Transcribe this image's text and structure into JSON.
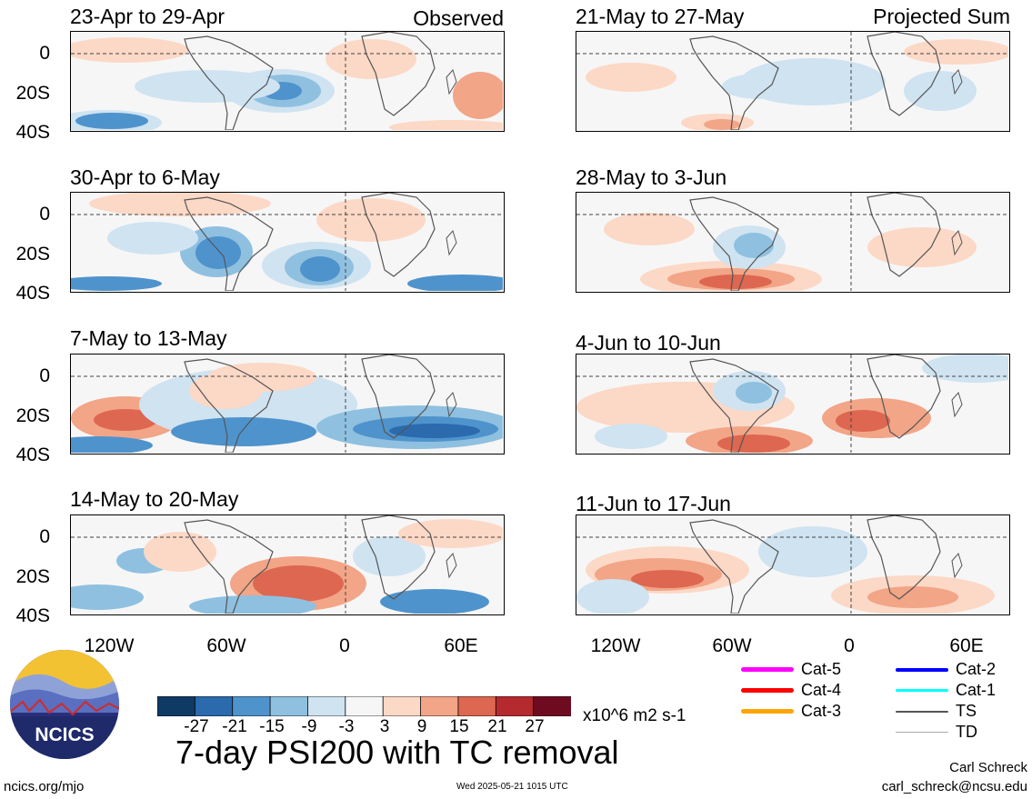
{
  "header": {
    "left_label": "Observed",
    "right_label": "Projected Sum"
  },
  "panels_left": [
    {
      "title": "23-Apr to 29-Apr"
    },
    {
      "title": "30-Apr to 6-May"
    },
    {
      "title": "7-May to 13-May"
    },
    {
      "title": "14-May to 20-May"
    }
  ],
  "panels_right": [
    {
      "title": "21-May to 27-May"
    },
    {
      "title": "28-May to 3-Jun"
    },
    {
      "title": "4-Jun to 10-Jun"
    },
    {
      "title": "11-Jun to 17-Jun"
    }
  ],
  "y_ticks": [
    "0",
    "20S",
    "40S"
  ],
  "x_ticks": [
    "120W",
    "60W",
    "0",
    "60E"
  ],
  "colorbar": {
    "colors": [
      "#0e3a63",
      "#2a6aad",
      "#4f93cc",
      "#8fc0e0",
      "#cfe3f1",
      "#f6f6f6",
      "#fcd8c6",
      "#f2a587",
      "#dd6750",
      "#b52a2e",
      "#6e0b21"
    ],
    "labels": [
      "-27",
      "-21",
      "-15",
      "-9",
      "-3",
      "3",
      "9",
      "15",
      "21",
      "27"
    ],
    "units": "x10^6 m2 s-1"
  },
  "legend": [
    {
      "label": "Cat-5",
      "color": "#ff00ff"
    },
    {
      "label": "Cat-4",
      "color": "#ff0000"
    },
    {
      "label": "Cat-3",
      "color": "#ffa500"
    },
    {
      "label": "Cat-2",
      "color": "#0000ff"
    },
    {
      "label": "Cat-1",
      "color": "#00ffff"
    },
    {
      "label": "TS",
      "color": "#555555"
    },
    {
      "label": "TD",
      "color": "#aaaaaa"
    }
  ],
  "title": "7-day PSI200 with TC removal",
  "logo_text": "NCICS",
  "footer": {
    "left": "ncics.org/mjo",
    "center": "Wed 2025-05-21 1015 UTC",
    "right_name": "Carl Schreck",
    "right_email": "carl_schreck@ncsu.edu"
  }
}
